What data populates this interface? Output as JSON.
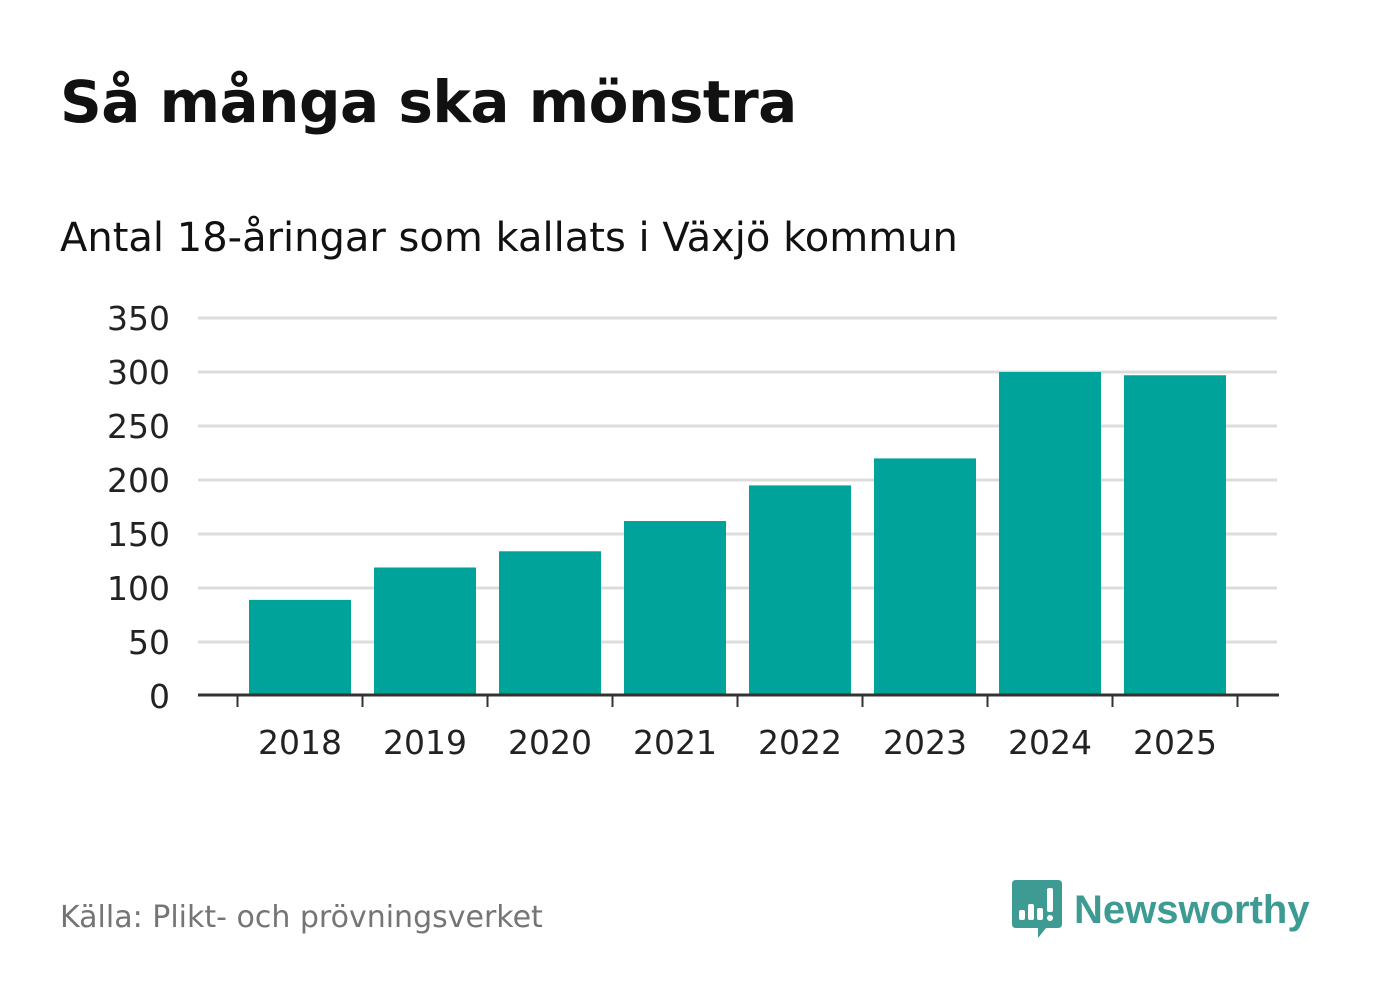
{
  "chart_data": {
    "type": "bar",
    "title": "Så många ska mönstra",
    "subtitle": "Antal 18-åringar som kallats i Växjö kommun",
    "categories": [
      "2018",
      "2019",
      "2020",
      "2021",
      "2022",
      "2023",
      "2024",
      "2025"
    ],
    "values": [
      89,
      119,
      134,
      162,
      195,
      220,
      300,
      297
    ],
    "xlabel": "",
    "ylabel": "",
    "ylim": [
      0,
      350
    ],
    "yticks": [
      0,
      50,
      100,
      150,
      200,
      250,
      300,
      350
    ],
    "grid": true,
    "bar_color": "#00a39a"
  },
  "source": "Källa: Plikt- och prövningsverket",
  "brand": "Newsworthy",
  "brand_color": "#3d9b93"
}
